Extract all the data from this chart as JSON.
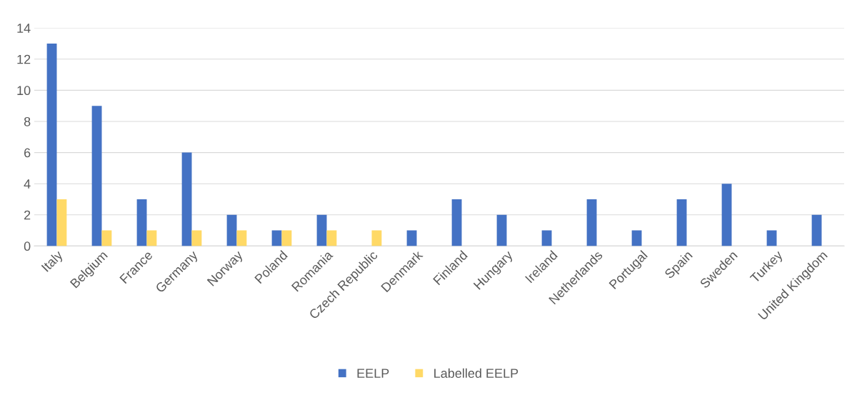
{
  "chart_data": {
    "type": "bar",
    "categories": [
      "Italy",
      "Belgium",
      "France",
      "Germany",
      "Norway",
      "Poland",
      "Romania",
      "Czech Republic",
      "Denmark",
      "Finland",
      "Hungary",
      "Ireland",
      "Netherlands",
      "Portugal",
      "Spain",
      "Sweden",
      "Turkey",
      "United Kingdom"
    ],
    "series": [
      {
        "name": "EELP",
        "color": "#4472c4",
        "values": [
          13,
          9,
          3,
          6,
          2,
          1,
          2,
          0,
          1,
          3,
          2,
          1,
          3,
          1,
          3,
          4,
          1,
          2
        ]
      },
      {
        "name": "Labelled EELP",
        "color": "#ffd966",
        "values": [
          3,
          1,
          1,
          1,
          1,
          1,
          1,
          1,
          0,
          0,
          0,
          0,
          0,
          0,
          0,
          0,
          0,
          0
        ]
      }
    ],
    "ylim": [
      0,
      14
    ],
    "yticks": [
      0,
      2,
      4,
      6,
      8,
      10,
      12,
      14
    ],
    "grid": "y",
    "legend": "bottom"
  }
}
